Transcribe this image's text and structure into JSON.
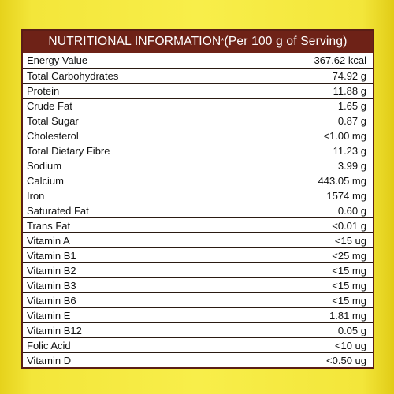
{
  "header": {
    "title": "NUTRITIONAL INFORMATION",
    "asterisk": "*",
    "subtitle": " (Per 100 g of Serving)"
  },
  "rows": [
    {
      "label": "Energy Value",
      "value": "367.62 kcal"
    },
    {
      "label": "Total Carbohydrates",
      "value": "74.92 g"
    },
    {
      "label": "Protein",
      "value": "11.88 g"
    },
    {
      "label": "Crude Fat",
      "value": "1.65 g"
    },
    {
      "label": "Total Sugar",
      "value": "0.87 g"
    },
    {
      "label": "Cholesterol",
      "value": "<1.00 mg"
    },
    {
      "label": "Total Dietary Fibre",
      "value": "11.23 g"
    },
    {
      "label": "Sodium",
      "value": "3.99 g"
    },
    {
      "label": "Calcium",
      "value": "443.05 mg"
    },
    {
      "label": "Iron",
      "value": "1574 mg"
    },
    {
      "label": "Saturated Fat",
      "value": "0.60 g"
    },
    {
      "label": "Trans Fat",
      "value": "<0.01 g"
    },
    {
      "label": "Vitamin A",
      "value": "<15 ug"
    },
    {
      "label": "Vitamin B1",
      "value": "<25 mg"
    },
    {
      "label": "Vitamin B2",
      "value": "<15 mg"
    },
    {
      "label": "Vitamin B3",
      "value": "<15 mg"
    },
    {
      "label": "Vitamin B6",
      "value": "<15 mg"
    },
    {
      "label": "Vitamin E",
      "value": "1.81 mg"
    },
    {
      "label": "Vitamin B12",
      "value": "0.05 g"
    },
    {
      "label": "Folic Acid",
      "value": "<10 ug"
    },
    {
      "label": "Vitamin D",
      "value": "<0.50 ug"
    }
  ],
  "colors": {
    "header_bg": "#6e2217",
    "package_yellow": "#f3e63a",
    "border": "#5a1e16"
  }
}
